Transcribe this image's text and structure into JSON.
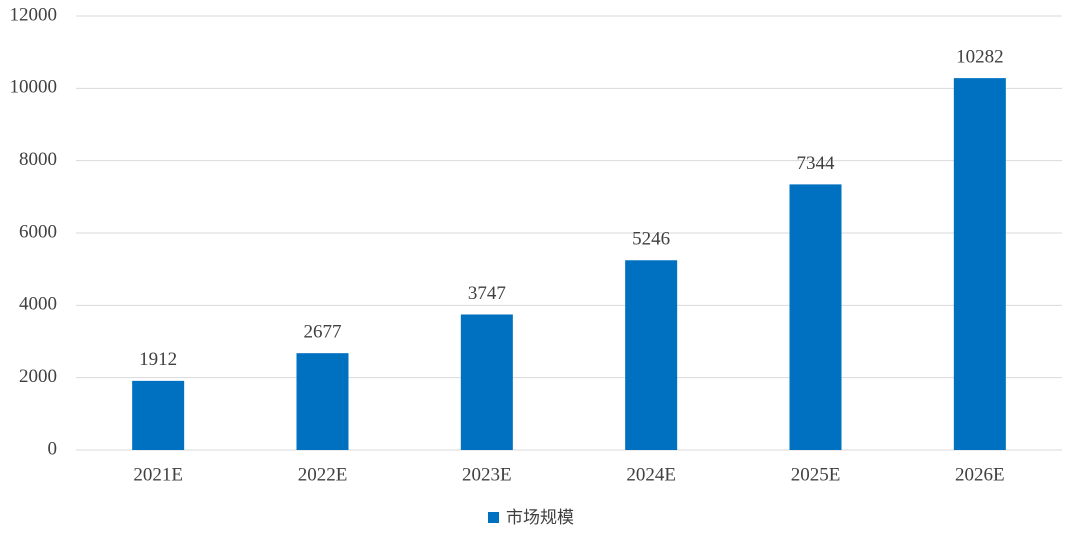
{
  "chart_data": {
    "type": "bar",
    "categories": [
      "2021E",
      "2022E",
      "2023E",
      "2024E",
      "2025E",
      "2026E"
    ],
    "series": [
      {
        "name": "市场规模",
        "color": "#0070c0",
        "values": [
          1912,
          2677,
          3747,
          5246,
          7344,
          10282
        ]
      }
    ],
    "ylim": [
      0,
      12000
    ],
    "yticks": [
      0,
      2000,
      4000,
      6000,
      8000,
      10000,
      12000
    ],
    "grid": true,
    "legend": "bottom",
    "data_labels": true
  }
}
